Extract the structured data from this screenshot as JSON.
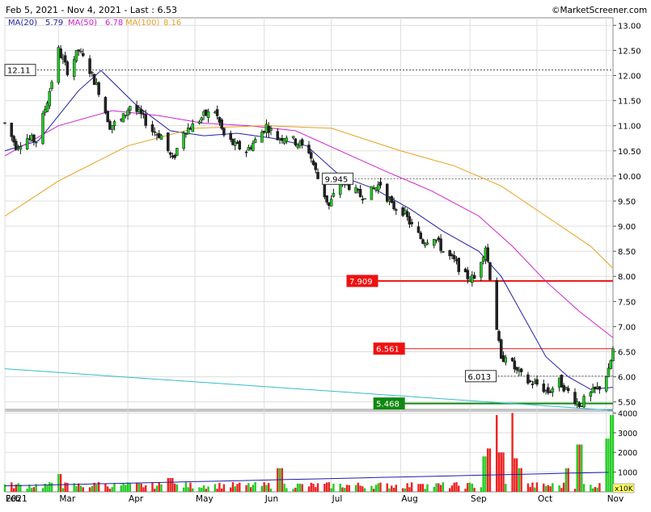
{
  "header": {
    "range_text": "Feb 5, 2021 - Nov 4, 2021 - Last : 6.53",
    "watermark": "©MarketScreener.com"
  },
  "legend": [
    {
      "label": "MA(20)",
      "value": "5.79",
      "color": "#1f1fa8"
    },
    {
      "label": "MA(50)",
      "value": "6.78",
      "color": "#d020d0"
    },
    {
      "label": "MA(100)",
      "value": "8.16",
      "color": "#e8a020"
    }
  ],
  "colors": {
    "up_candle": "#22cc22",
    "down_candle": "#222222",
    "volume_up": "#22cc22",
    "volume_down": "#ee2222",
    "red_level": "#ee1111",
    "green_level": "#118811",
    "trendline": "#33bbcc",
    "grid": "#dddddd"
  },
  "chart_data": {
    "type": "candlestick",
    "x_tick_labels": [
      "2021",
      "Feb",
      "Mar",
      "Apr",
      "May",
      "Jun",
      "Jul",
      "Aug",
      "Sep",
      "Oct",
      "Nov"
    ],
    "x_tick_dates": [
      "2021-01-28",
      "2021-02-01",
      "2021-03-01",
      "2021-04-01",
      "2021-05-01",
      "2021-06-01",
      "2021-07-01",
      "2021-08-01",
      "2021-09-01",
      "2021-10-01",
      "2021-11-01"
    ],
    "y_tick_labels": [
      "5.50",
      "6.00",
      "6.50",
      "7.00",
      "7.50",
      "8.00",
      "8.50",
      "9.00",
      "9.50",
      "10.00",
      "10.50",
      "11.00",
      "11.50",
      "12.00",
      "12.50",
      "13.00"
    ],
    "y_ticks": [
      5.5,
      6.0,
      6.5,
      7.0,
      7.5,
      8.0,
      8.5,
      9.0,
      9.5,
      10.0,
      10.5,
      11.0,
      11.5,
      12.0,
      12.5,
      13.0
    ],
    "ylim": [
      5.35,
      13.15
    ],
    "xlim": [
      "2021-02-05",
      "2021-11-04"
    ],
    "price_anchors": [
      [
        "2021-02-05",
        11.05
      ],
      [
        "2021-02-10",
        10.6
      ],
      [
        "2021-02-15",
        10.75
      ],
      [
        "2021-02-19",
        10.7
      ],
      [
        "2021-02-24",
        11.5
      ],
      [
        "2021-03-01",
        12.5
      ],
      [
        "2021-03-05",
        12.1
      ],
      [
        "2021-03-10",
        12.5
      ],
      [
        "2021-03-15",
        12.1
      ],
      [
        "2021-03-19",
        11.7
      ],
      [
        "2021-03-24",
        11.0
      ],
      [
        "2021-03-29",
        11.1
      ],
      [
        "2021-04-02",
        11.4
      ],
      [
        "2021-04-07",
        11.2
      ],
      [
        "2021-04-12",
        10.9
      ],
      [
        "2021-04-16",
        10.8
      ],
      [
        "2021-04-21",
        10.3
      ],
      [
        "2021-04-26",
        10.9
      ],
      [
        "2021-04-30",
        11.0
      ],
      [
        "2021-05-05",
        11.2
      ],
      [
        "2021-05-10",
        11.3
      ],
      [
        "2021-05-14",
        10.8
      ],
      [
        "2021-05-19",
        10.6
      ],
      [
        "2021-05-24",
        10.5
      ],
      [
        "2021-05-28",
        10.7
      ],
      [
        "2021-06-02",
        11.0
      ],
      [
        "2021-06-07",
        10.75
      ],
      [
        "2021-06-11",
        10.8
      ],
      [
        "2021-06-16",
        10.65
      ],
      [
        "2021-06-21",
        10.5
      ],
      [
        "2021-06-25",
        9.95
      ],
      [
        "2021-06-30",
        9.4
      ],
      [
        "2021-07-05",
        9.9
      ],
      [
        "2021-07-09",
        9.8
      ],
      [
        "2021-07-14",
        9.6
      ],
      [
        "2021-07-19",
        9.7
      ],
      [
        "2021-07-23",
        9.85
      ],
      [
        "2021-07-28",
        9.4
      ],
      [
        "2021-08-02",
        9.3
      ],
      [
        "2021-08-06",
        9.0
      ],
      [
        "2021-08-11",
        8.7
      ],
      [
        "2021-08-16",
        8.8
      ],
      [
        "2021-08-20",
        8.5
      ],
      [
        "2021-08-25",
        8.3
      ],
      [
        "2021-08-30",
        8.0
      ],
      [
        "2021-09-03",
        7.95
      ],
      [
        "2021-09-08",
        8.6
      ],
      [
        "2021-09-10",
        8.0
      ],
      [
        "2021-09-15",
        6.3
      ],
      [
        "2021-09-17",
        6.45
      ],
      [
        "2021-09-22",
        6.1
      ],
      [
        "2021-09-27",
        5.9
      ],
      [
        "2021-10-01",
        5.85
      ],
      [
        "2021-10-06",
        5.7
      ],
      [
        "2021-10-11",
        5.9
      ],
      [
        "2021-10-15",
        5.7
      ],
      [
        "2021-10-20",
        5.45
      ],
      [
        "2021-10-25",
        5.65
      ],
      [
        "2021-10-29",
        5.8
      ],
      [
        "2021-11-02",
        6.1
      ],
      [
        "2021-11-04",
        6.53
      ]
    ],
    "moving_averages": [
      {
        "name": "MA(20)",
        "points": [
          [
            "2021-02-05",
            10.5
          ],
          [
            "2021-02-20",
            10.7
          ],
          [
            "2021-03-10",
            11.7
          ],
          [
            "2021-03-20",
            12.1
          ],
          [
            "2021-04-05",
            11.4
          ],
          [
            "2021-04-20",
            10.9
          ],
          [
            "2021-05-05",
            10.8
          ],
          [
            "2021-05-20",
            10.85
          ],
          [
            "2021-06-05",
            10.75
          ],
          [
            "2021-06-20",
            10.6
          ],
          [
            "2021-07-05",
            10.0
          ],
          [
            "2021-07-20",
            9.75
          ],
          [
            "2021-08-05",
            9.35
          ],
          [
            "2021-08-20",
            8.9
          ],
          [
            "2021-09-05",
            8.5
          ],
          [
            "2021-09-15",
            8.0
          ],
          [
            "2021-09-25",
            7.2
          ],
          [
            "2021-10-05",
            6.4
          ],
          [
            "2021-10-15",
            6.0
          ],
          [
            "2021-10-25",
            5.75
          ],
          [
            "2021-11-04",
            5.79
          ]
        ]
      },
      {
        "name": "MA(50)",
        "points": [
          [
            "2021-02-05",
            10.4
          ],
          [
            "2021-03-01",
            11.0
          ],
          [
            "2021-03-25",
            11.3
          ],
          [
            "2021-04-15",
            11.2
          ],
          [
            "2021-05-05",
            11.05
          ],
          [
            "2021-05-25",
            11.0
          ],
          [
            "2021-06-15",
            10.9
          ],
          [
            "2021-07-05",
            10.5
          ],
          [
            "2021-07-25",
            10.1
          ],
          [
            "2021-08-15",
            9.7
          ],
          [
            "2021-09-05",
            9.2
          ],
          [
            "2021-09-20",
            8.6
          ],
          [
            "2021-10-05",
            7.9
          ],
          [
            "2021-10-20",
            7.3
          ],
          [
            "2021-11-04",
            6.78
          ]
        ]
      },
      {
        "name": "MA(100)",
        "points": [
          [
            "2021-02-05",
            9.2
          ],
          [
            "2021-03-01",
            9.9
          ],
          [
            "2021-04-01",
            10.6
          ],
          [
            "2021-05-01",
            10.95
          ],
          [
            "2021-06-01",
            11.0
          ],
          [
            "2021-07-01",
            10.95
          ],
          [
            "2021-08-01",
            10.5
          ],
          [
            "2021-08-25",
            10.2
          ],
          [
            "2021-09-15",
            9.8
          ],
          [
            "2021-10-05",
            9.2
          ],
          [
            "2021-10-25",
            8.6
          ],
          [
            "2021-11-04",
            8.16
          ]
        ]
      }
    ],
    "trendline": {
      "from": [
        "2021-02-05",
        6.16
      ],
      "to": [
        "2021-11-04",
        5.33
      ]
    },
    "levels": [
      {
        "label": "12.11",
        "value": 12.11,
        "style": "dotted-black",
        "from": "2021-02-05"
      },
      {
        "label": "9.945",
        "value": 9.945,
        "style": "dotted-black",
        "from": "2021-06-27"
      },
      {
        "label": "7.909",
        "value": 7.909,
        "style": "solid-red",
        "from": "2021-07-08"
      },
      {
        "label": "6.561",
        "value": 6.561,
        "style": "thin-red",
        "from": "2021-07-20"
      },
      {
        "label": "6.013",
        "value": 6.013,
        "style": "dotted-black",
        "from": "2021-08-30"
      },
      {
        "label": "5.468",
        "value": 5.468,
        "style": "solid-green",
        "from": "2021-07-20"
      }
    ],
    "volume": {
      "y_tick_labels": [
        "1000",
        "2000",
        "3000",
        "4000"
      ],
      "y_ticks": [
        1000,
        2000,
        3000,
        4000
      ],
      "ylim": [
        0,
        4100
      ],
      "unit_label": "x10K",
      "ma_name": "volume-average",
      "spikes": [
        [
          "2021-03-01",
          900
        ],
        [
          "2021-03-20",
          500
        ],
        [
          "2021-04-20",
          700
        ],
        [
          "2021-06-08",
          1200
        ],
        [
          "2021-08-10",
          400
        ],
        [
          "2021-09-08",
          1800
        ],
        [
          "2021-09-10",
          2200
        ],
        [
          "2021-09-13",
          3900
        ],
        [
          "2021-09-15",
          2000
        ],
        [
          "2021-09-20",
          4000
        ],
        [
          "2021-09-22",
          1700
        ],
        [
          "2021-09-24",
          1200
        ],
        [
          "2021-10-15",
          1200
        ],
        [
          "2021-10-20",
          2400
        ],
        [
          "2021-11-02",
          2700
        ],
        [
          "2021-11-04",
          3900
        ]
      ]
    }
  }
}
